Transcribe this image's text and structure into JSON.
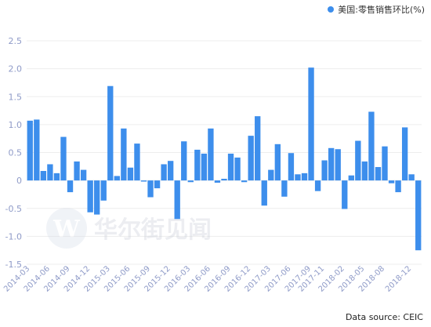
{
  "chart_data": {
    "type": "bar",
    "series": [
      {
        "name": "美国:零售销售环比(%)",
        "color": "#3d8eec",
        "values": [
          1.07,
          1.09,
          0.17,
          0.29,
          0.13,
          0.78,
          -0.21,
          0.34,
          0.19,
          -0.57,
          -0.61,
          -0.36,
          1.69,
          0.08,
          0.93,
          0.23,
          0.66,
          -0.02,
          -0.3,
          -0.14,
          0.29,
          0.35,
          -0.69,
          0.7,
          -0.03,
          0.55,
          0.48,
          0.93,
          -0.04,
          0.03,
          0.48,
          0.41,
          -0.03,
          0.8,
          1.15,
          -0.45,
          0.19,
          0.65,
          -0.29,
          0.49,
          0.11,
          0.13,
          2.02,
          -0.19,
          0.36,
          0.58,
          0.56,
          -0.51,
          0.09,
          0.71,
          0.34,
          1.23,
          0.24,
          0.61,
          -0.05,
          -0.21,
          0.95,
          0.11,
          -1.25
        ]
      }
    ],
    "categories": [
      "2014-03",
      "2014-04",
      "2014-05",
      "2014-06",
      "2014-07",
      "2014-08",
      "2014-09",
      "2014-10",
      "2014-11",
      "2014-12",
      "2015-01",
      "2015-02",
      "2015-03",
      "2015-04",
      "2015-05",
      "2015-06",
      "2015-07",
      "2015-08",
      "2015-09",
      "2015-10",
      "2015-11",
      "2015-12",
      "2016-01",
      "2016-02",
      "2016-03",
      "2016-04",
      "2016-05",
      "2016-06",
      "2016-07",
      "2016-08",
      "2016-09",
      "2016-10",
      "2016-11",
      "2016-12",
      "2017-01",
      "2017-02",
      "2017-03",
      "2017-04",
      "2017-05",
      "2017-06",
      "2017-07",
      "2017-08",
      "2017-09",
      "2017-10",
      "2017-11",
      "2017-12",
      "2018-01",
      "2018-02",
      "2018-03",
      "2018-04",
      "2018-05",
      "2018-06",
      "2018-07",
      "2018-08",
      "2018-09",
      "2018-10",
      "2018-11",
      "2018-12",
      "2019-01"
    ],
    "x_tick_labels": [
      "2014-03",
      "2014-06",
      "2014-09",
      "2014-12",
      "2015-03",
      "2015-06",
      "2015-09",
      "2015-12",
      "2016-03",
      "2016-06",
      "2016-09",
      "2016-12",
      "2017-03",
      "2017-06",
      "2017-09",
      "2017-11",
      "2018-02",
      "2018-05",
      "2018-08",
      "2018-12"
    ],
    "x_tick_indices": [
      0,
      3,
      6,
      9,
      12,
      15,
      18,
      21,
      24,
      27,
      30,
      33,
      36,
      39,
      42,
      44,
      47,
      50,
      53,
      57
    ],
    "y_ticks": [
      2.5,
      2.0,
      1.5,
      1.0,
      0.5,
      0,
      -0.5,
      -1.0,
      -1.5
    ],
    "y_tick_labels": [
      "2.5",
      "2.0",
      "1.5",
      "1.0",
      "0.5",
      "0",
      "-0.5",
      "-1.0",
      "-1.5"
    ],
    "ylim": [
      -1.5,
      2.5
    ],
    "grid": true,
    "legend_position": "top-right"
  },
  "legend": {
    "label": "美国:零售销售环比(%)",
    "color": "#3d8eec"
  },
  "watermark": {
    "text": "华尔街见闻"
  },
  "source": "Data source: CEIC"
}
